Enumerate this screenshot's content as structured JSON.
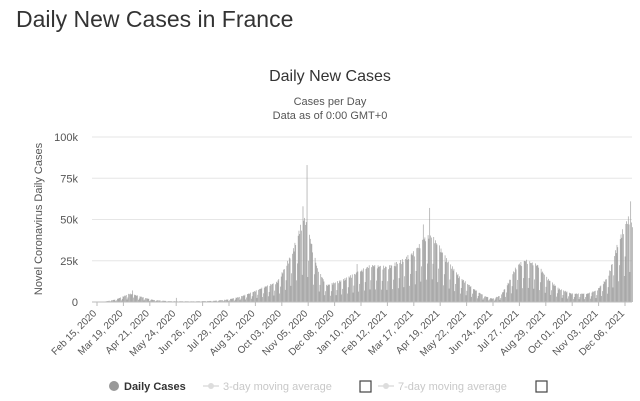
{
  "page": {
    "title": "Daily New Cases in France"
  },
  "chart_data": {
    "type": "bar",
    "title": "Daily New Cases",
    "subtitle_line1": "Cases per Day",
    "subtitle_line2": "Data as of 0:00 GMT+0",
    "ylabel": "Novel Coronavirus Daily Cases",
    "xlabel": "",
    "ylim": [
      0,
      100000
    ],
    "y_ticks": [
      0,
      25000,
      50000,
      75000,
      100000
    ],
    "y_tick_labels": [
      "0",
      "25k",
      "50k",
      "75k",
      "100k"
    ],
    "x_range": [
      "2020-02-15",
      "2021-12-15"
    ],
    "x_tick_labels": [
      "Feb 15, 2020",
      "Mar 19, 2020",
      "Apr 21, 2020",
      "May 24, 2020",
      "Jun 26, 2020",
      "Jul 29, 2020",
      "Aug 31, 2020",
      "Oct 03, 2020",
      "Nov 05, 2020",
      "Dec 08, 2020",
      "Jan 10, 2021",
      "Feb 12, 2021",
      "Mar 17, 2021",
      "Apr 19, 2021",
      "May 22, 2021",
      "Jun 24, 2021",
      "Jul 27, 2021",
      "Aug 29, 2021",
      "Oct 01, 2021",
      "Nov 03, 2021",
      "Dec 06, 2021"
    ],
    "grid": true,
    "legend_position": "bottom",
    "bar_color": "#999999",
    "series": [
      {
        "name": "Daily Cases",
        "start_date": "2020-02-15",
        "knots": [
          [
            "2020-02-15",
            0
          ],
          [
            "2020-03-01",
            200
          ],
          [
            "2020-03-15",
            1500
          ],
          [
            "2020-03-25",
            3500
          ],
          [
            "2020-04-01",
            5000
          ],
          [
            "2020-04-10",
            4000
          ],
          [
            "2020-04-20",
            2500
          ],
          [
            "2020-05-01",
            1200
          ],
          [
            "2020-05-20",
            500
          ],
          [
            "2020-06-20",
            400
          ],
          [
            "2020-07-15",
            700
          ],
          [
            "2020-08-01",
            1500
          ],
          [
            "2020-08-15",
            3000
          ],
          [
            "2020-09-01",
            6000
          ],
          [
            "2020-09-15",
            9000
          ],
          [
            "2020-10-01",
            12000
          ],
          [
            "2020-10-10",
            20000
          ],
          [
            "2020-10-20",
            30000
          ],
          [
            "2020-10-30",
            45000
          ],
          [
            "2020-11-04",
            50000
          ],
          [
            "2020-11-10",
            40000
          ],
          [
            "2020-11-20",
            20000
          ],
          [
            "2020-12-01",
            10000
          ],
          [
            "2020-12-20",
            13000
          ],
          [
            "2021-01-10",
            18000
          ],
          [
            "2021-01-25",
            22000
          ],
          [
            "2021-02-15",
            21000
          ],
          [
            "2021-03-05",
            25000
          ],
          [
            "2021-03-20",
            30000
          ],
          [
            "2021-04-01",
            38000
          ],
          [
            "2021-04-10",
            40000
          ],
          [
            "2021-04-20",
            33000
          ],
          [
            "2021-05-01",
            24000
          ],
          [
            "2021-05-15",
            15000
          ],
          [
            "2021-06-01",
            8000
          ],
          [
            "2021-06-15",
            3500
          ],
          [
            "2021-06-25",
            2000
          ],
          [
            "2021-07-05",
            4000
          ],
          [
            "2021-07-15",
            12000
          ],
          [
            "2021-07-25",
            22000
          ],
          [
            "2021-08-05",
            25000
          ],
          [
            "2021-08-20",
            22000
          ],
          [
            "2021-09-01",
            14000
          ],
          [
            "2021-09-15",
            8000
          ],
          [
            "2021-10-01",
            5000
          ],
          [
            "2021-10-20",
            5000
          ],
          [
            "2021-11-01",
            7000
          ],
          [
            "2021-11-15",
            15000
          ],
          [
            "2021-11-25",
            32000
          ],
          [
            "2021-12-05",
            45000
          ],
          [
            "2021-12-12",
            52000
          ],
          [
            "2021-12-15",
            45000
          ]
        ],
        "spikes": [
          [
            "2020-04-05",
            7000
          ],
          [
            "2020-05-29",
            2500
          ],
          [
            "2020-11-02",
            58000
          ],
          [
            "2020-11-07",
            83000
          ],
          [
            "2021-01-08",
            23000
          ],
          [
            "2021-03-31",
            47000
          ],
          [
            "2021-04-08",
            57000
          ],
          [
            "2021-12-13",
            61000
          ]
        ]
      }
    ]
  },
  "legend": {
    "daily_cases": "Daily Cases",
    "ma3": "3-day moving average",
    "ma7": "7-day moving average"
  }
}
